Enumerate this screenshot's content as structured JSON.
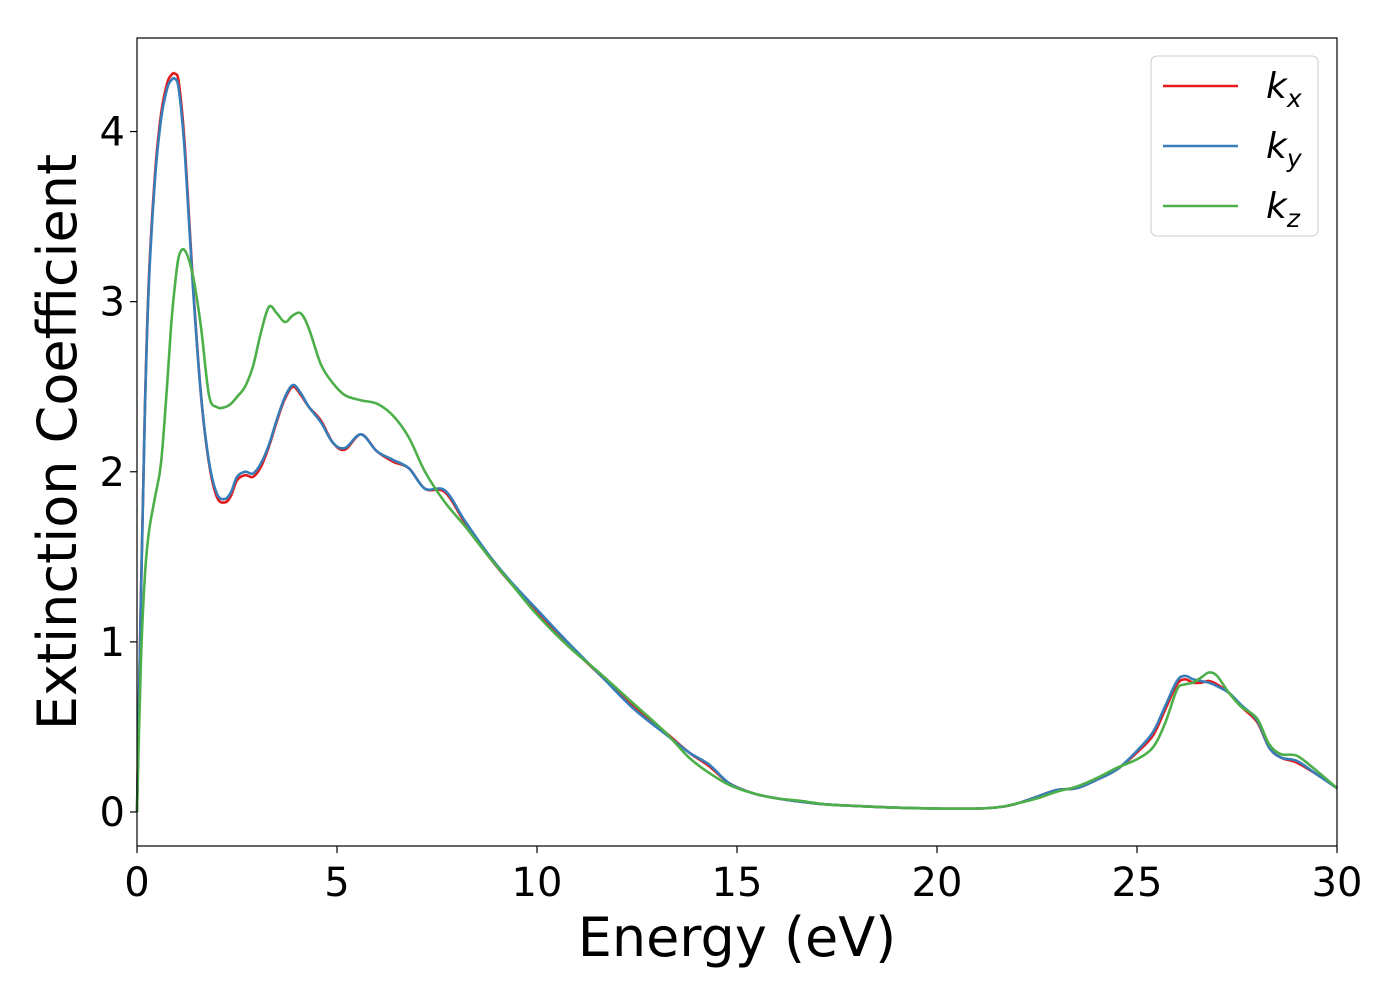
{
  "chart_data": {
    "type": "line",
    "xlabel": "Energy (eV)",
    "ylabel": "Extinction Coefficient",
    "xlim": [
      0,
      30
    ],
    "ylim": [
      -0.2,
      4.55
    ],
    "xticks": [
      0,
      5,
      10,
      15,
      20,
      25,
      30
    ],
    "yticks": [
      0,
      1,
      2,
      3,
      4
    ],
    "grid": false,
    "legend_position": "top-right",
    "series": [
      {
        "name": "k",
        "name_subscript": "x",
        "color": "#e41a1c",
        "x": [
          0,
          0.1,
          0.2,
          0.3,
          0.45,
          0.6,
          0.75,
          0.85,
          0.95,
          1.05,
          1.2,
          1.4,
          1.6,
          1.8,
          2.0,
          2.2,
          2.35,
          2.5,
          2.7,
          2.9,
          3.1,
          3.3,
          3.5,
          3.7,
          3.9,
          4.1,
          4.3,
          4.6,
          4.9,
          5.2,
          5.6,
          6.0,
          6.4,
          6.8,
          7.2,
          7.7,
          8.2,
          8.8,
          9.4,
          10.0,
          10.8,
          11.6,
          12.4,
          13.2,
          13.8,
          14.3,
          14.8,
          15.4,
          16.0,
          16.6,
          17.2,
          18.0,
          19.0,
          20.0,
          21.0,
          21.6,
          22.0,
          22.5,
          23.0,
          23.5,
          24.0,
          24.5,
          25.0,
          25.4,
          25.7,
          26.0,
          26.2,
          26.4,
          26.6,
          26.8,
          27.0,
          27.3,
          27.6,
          28.0,
          28.3,
          28.6,
          29.0,
          29.5,
          30.0
        ],
        "y": [
          0.0,
          1.3,
          2.4,
          3.15,
          3.75,
          4.1,
          4.28,
          4.33,
          4.34,
          4.28,
          3.9,
          3.1,
          2.45,
          2.05,
          1.85,
          1.82,
          1.86,
          1.95,
          1.98,
          1.97,
          2.03,
          2.15,
          2.3,
          2.43,
          2.5,
          2.45,
          2.38,
          2.3,
          2.17,
          2.13,
          2.22,
          2.12,
          2.06,
          2.02,
          1.9,
          1.88,
          1.7,
          1.5,
          1.33,
          1.18,
          0.98,
          0.8,
          0.62,
          0.47,
          0.35,
          0.27,
          0.17,
          0.11,
          0.08,
          0.06,
          0.045,
          0.035,
          0.025,
          0.02,
          0.02,
          0.03,
          0.05,
          0.09,
          0.13,
          0.14,
          0.19,
          0.25,
          0.35,
          0.45,
          0.6,
          0.75,
          0.78,
          0.76,
          0.76,
          0.77,
          0.75,
          0.7,
          0.62,
          0.53,
          0.38,
          0.32,
          0.29,
          0.22,
          0.14
        ]
      },
      {
        "name": "k",
        "name_subscript": "y",
        "color": "#377eb8",
        "x": [
          0,
          0.1,
          0.2,
          0.3,
          0.45,
          0.6,
          0.75,
          0.85,
          0.95,
          1.05,
          1.2,
          1.4,
          1.6,
          1.8,
          2.0,
          2.2,
          2.35,
          2.5,
          2.7,
          2.9,
          3.1,
          3.3,
          3.5,
          3.7,
          3.9,
          4.1,
          4.3,
          4.6,
          4.9,
          5.2,
          5.6,
          6.0,
          6.4,
          6.8,
          7.2,
          7.7,
          8.2,
          8.8,
          9.4,
          10.0,
          10.8,
          11.6,
          12.4,
          13.2,
          13.8,
          14.3,
          14.8,
          15.4,
          16.0,
          16.6,
          17.2,
          18.0,
          19.0,
          20.0,
          21.0,
          21.6,
          22.0,
          22.5,
          23.0,
          23.5,
          24.0,
          24.5,
          25.0,
          25.4,
          25.7,
          26.0,
          26.2,
          26.4,
          26.6,
          26.8,
          27.0,
          27.3,
          27.6,
          28.0,
          28.3,
          28.6,
          29.0,
          29.5,
          30.0
        ],
        "y": [
          0.0,
          1.28,
          2.38,
          3.12,
          3.72,
          4.07,
          4.25,
          4.3,
          4.31,
          4.24,
          3.86,
          3.08,
          2.45,
          2.06,
          1.87,
          1.84,
          1.88,
          1.97,
          2.0,
          1.99,
          2.05,
          2.16,
          2.31,
          2.44,
          2.51,
          2.46,
          2.38,
          2.29,
          2.17,
          2.14,
          2.22,
          2.12,
          2.07,
          2.02,
          1.9,
          1.89,
          1.71,
          1.51,
          1.34,
          1.19,
          0.99,
          0.8,
          0.61,
          0.46,
          0.35,
          0.28,
          0.17,
          0.11,
          0.08,
          0.06,
          0.045,
          0.035,
          0.025,
          0.02,
          0.02,
          0.03,
          0.05,
          0.09,
          0.13,
          0.14,
          0.19,
          0.25,
          0.36,
          0.47,
          0.62,
          0.77,
          0.8,
          0.78,
          0.77,
          0.76,
          0.74,
          0.7,
          0.63,
          0.54,
          0.38,
          0.32,
          0.3,
          0.22,
          0.14
        ]
      },
      {
        "name": "k",
        "name_subscript": "z",
        "color": "#4daf4a",
        "x": [
          0,
          0.1,
          0.2,
          0.3,
          0.45,
          0.6,
          0.75,
          0.85,
          0.95,
          1.05,
          1.2,
          1.4,
          1.6,
          1.8,
          2.0,
          2.2,
          2.35,
          2.5,
          2.7,
          2.9,
          3.1,
          3.3,
          3.5,
          3.7,
          3.9,
          4.1,
          4.3,
          4.6,
          4.9,
          5.2,
          5.6,
          6.0,
          6.4,
          6.8,
          7.2,
          7.7,
          8.2,
          8.8,
          9.4,
          10.0,
          10.8,
          11.6,
          12.4,
          13.2,
          13.8,
          14.3,
          14.8,
          15.4,
          16.0,
          16.6,
          17.2,
          18.0,
          19.0,
          20.0,
          21.0,
          21.6,
          22.0,
          22.5,
          23.0,
          23.5,
          24.0,
          24.5,
          25.0,
          25.4,
          25.7,
          26.0,
          26.2,
          26.4,
          26.6,
          26.8,
          27.0,
          27.3,
          27.6,
          28.0,
          28.3,
          28.6,
          29.0,
          29.5,
          30.0
        ],
        "y": [
          0.0,
          0.9,
          1.4,
          1.65,
          1.85,
          2.05,
          2.5,
          2.85,
          3.1,
          3.27,
          3.3,
          3.15,
          2.85,
          2.45,
          2.38,
          2.38,
          2.4,
          2.44,
          2.5,
          2.62,
          2.82,
          2.97,
          2.93,
          2.88,
          2.92,
          2.93,
          2.84,
          2.63,
          2.52,
          2.45,
          2.42,
          2.4,
          2.33,
          2.2,
          2.0,
          1.82,
          1.68,
          1.5,
          1.33,
          1.16,
          0.97,
          0.81,
          0.64,
          0.47,
          0.32,
          0.23,
          0.16,
          0.11,
          0.08,
          0.065,
          0.045,
          0.035,
          0.025,
          0.02,
          0.02,
          0.03,
          0.05,
          0.08,
          0.12,
          0.15,
          0.2,
          0.26,
          0.31,
          0.38,
          0.52,
          0.72,
          0.75,
          0.76,
          0.79,
          0.82,
          0.8,
          0.7,
          0.62,
          0.55,
          0.4,
          0.34,
          0.33,
          0.24,
          0.14
        ]
      }
    ]
  }
}
